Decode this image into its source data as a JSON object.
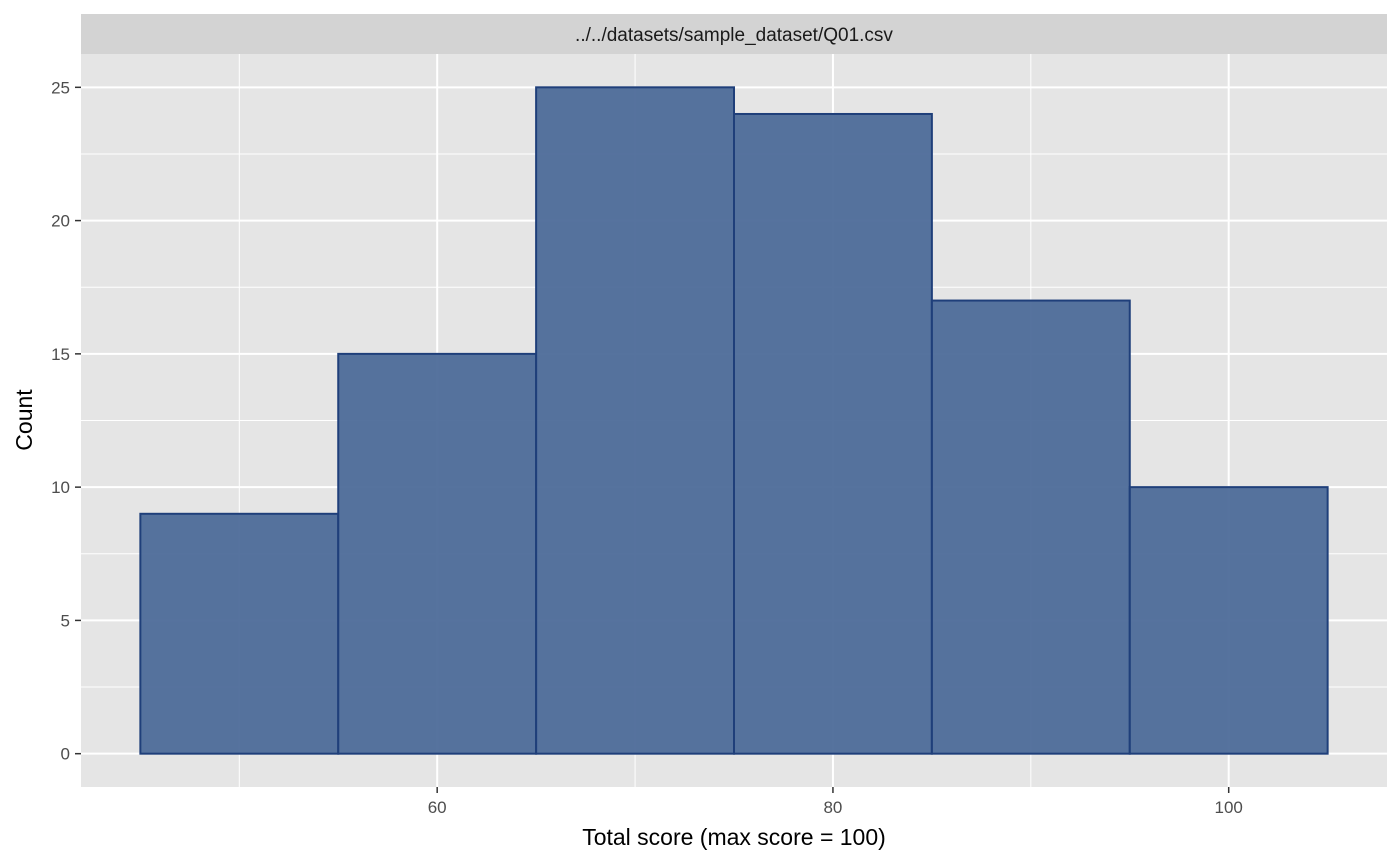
{
  "chart_data": {
    "type": "bar",
    "subtype": "histogram",
    "facet_label": "../../datasets/sample_dataset/Q01.csv",
    "xlabel": "Total score (max score = 100)",
    "ylabel": "Count",
    "bins": [
      {
        "from": 45,
        "to": 55,
        "count": 9
      },
      {
        "from": 55,
        "to": 65,
        "count": 15
      },
      {
        "from": 65,
        "to": 75,
        "count": 25
      },
      {
        "from": 75,
        "to": 85,
        "count": 24
      },
      {
        "from": 85,
        "to": 95,
        "count": 17
      },
      {
        "from": 95,
        "to": 105,
        "count": 10
      }
    ],
    "xlim": [
      42.0,
      108.0
    ],
    "ylim": [
      -1.25,
      26.25
    ],
    "x_ticks": [
      60,
      80,
      100
    ],
    "x_minor_ticks": [
      50,
      70,
      90
    ],
    "y_ticks": [
      0,
      5,
      10,
      15,
      20,
      25
    ],
    "y_minor_ticks": [
      2.5,
      7.5,
      12.5,
      17.5,
      22.5
    ],
    "grid": true,
    "colors": {
      "bar_fill": "#4d6b99",
      "bar_outline": "#1f3f7a",
      "panel_background": "#e5e5e5",
      "strip_background": "#d3d3d3",
      "grid": "#ffffff"
    }
  }
}
